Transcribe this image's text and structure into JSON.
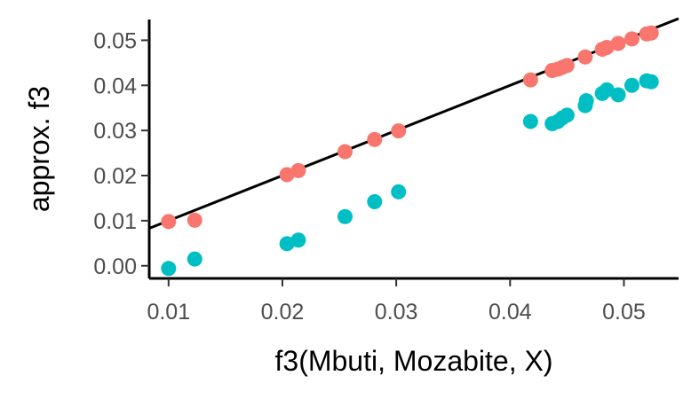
{
  "chart_data": {
    "type": "scatter",
    "title": "",
    "xlabel": "f3(Mbuti, Mozabite, X)",
    "ylabel": "approx. f3",
    "xlim": [
      0.0083,
      0.0548
    ],
    "ylim": [
      -0.0028,
      0.0546
    ],
    "x_ticks": [
      0.01,
      0.02,
      0.03,
      0.04,
      0.05
    ],
    "x_tick_labels": [
      "0.01",
      "0.02",
      "0.03",
      "0.04",
      "0.05"
    ],
    "y_ticks": [
      0.0,
      0.01,
      0.02,
      0.03,
      0.04,
      0.05
    ],
    "y_tick_labels": [
      "0.00",
      "0.01",
      "0.02",
      "0.03",
      "0.04",
      "0.05"
    ],
    "grid": false,
    "legend": "none",
    "reference_line": {
      "slope": 1,
      "intercept": 0,
      "color": "#000000"
    },
    "series": [
      {
        "color": "#F8766D",
        "points": [
          [
            0.01,
            0.0098
          ],
          [
            0.0123,
            0.0101
          ],
          [
            0.0204,
            0.0202
          ],
          [
            0.0214,
            0.0211
          ],
          [
            0.0255,
            0.0253
          ],
          [
            0.0281,
            0.028
          ],
          [
            0.0302,
            0.0299
          ],
          [
            0.0418,
            0.0412
          ],
          [
            0.0437,
            0.0433
          ],
          [
            0.0442,
            0.0436
          ],
          [
            0.0446,
            0.044
          ],
          [
            0.045,
            0.0444
          ],
          [
            0.0466,
            0.0463
          ],
          [
            0.0481,
            0.048
          ],
          [
            0.0485,
            0.0484
          ],
          [
            0.0495,
            0.0493
          ],
          [
            0.0507,
            0.0503
          ],
          [
            0.052,
            0.0514
          ],
          [
            0.0524,
            0.0516
          ]
        ]
      },
      {
        "color": "#00BFC4",
        "points": [
          [
            0.01,
            -0.0006
          ],
          [
            0.0123,
            0.0015
          ],
          [
            0.0204,
            0.0049
          ],
          [
            0.0214,
            0.0057
          ],
          [
            0.0255,
            0.0109
          ],
          [
            0.0281,
            0.0142
          ],
          [
            0.0302,
            0.0164
          ],
          [
            0.0418,
            0.032
          ],
          [
            0.0437,
            0.0315
          ],
          [
            0.0442,
            0.032
          ],
          [
            0.0446,
            0.0328
          ],
          [
            0.045,
            0.0334
          ],
          [
            0.0466,
            0.0355
          ],
          [
            0.0467,
            0.0366
          ],
          [
            0.0481,
            0.0382
          ],
          [
            0.0485,
            0.039
          ],
          [
            0.0495,
            0.0379
          ],
          [
            0.0507,
            0.04
          ],
          [
            0.052,
            0.041
          ],
          [
            0.0524,
            0.0408
          ]
        ]
      }
    ]
  }
}
